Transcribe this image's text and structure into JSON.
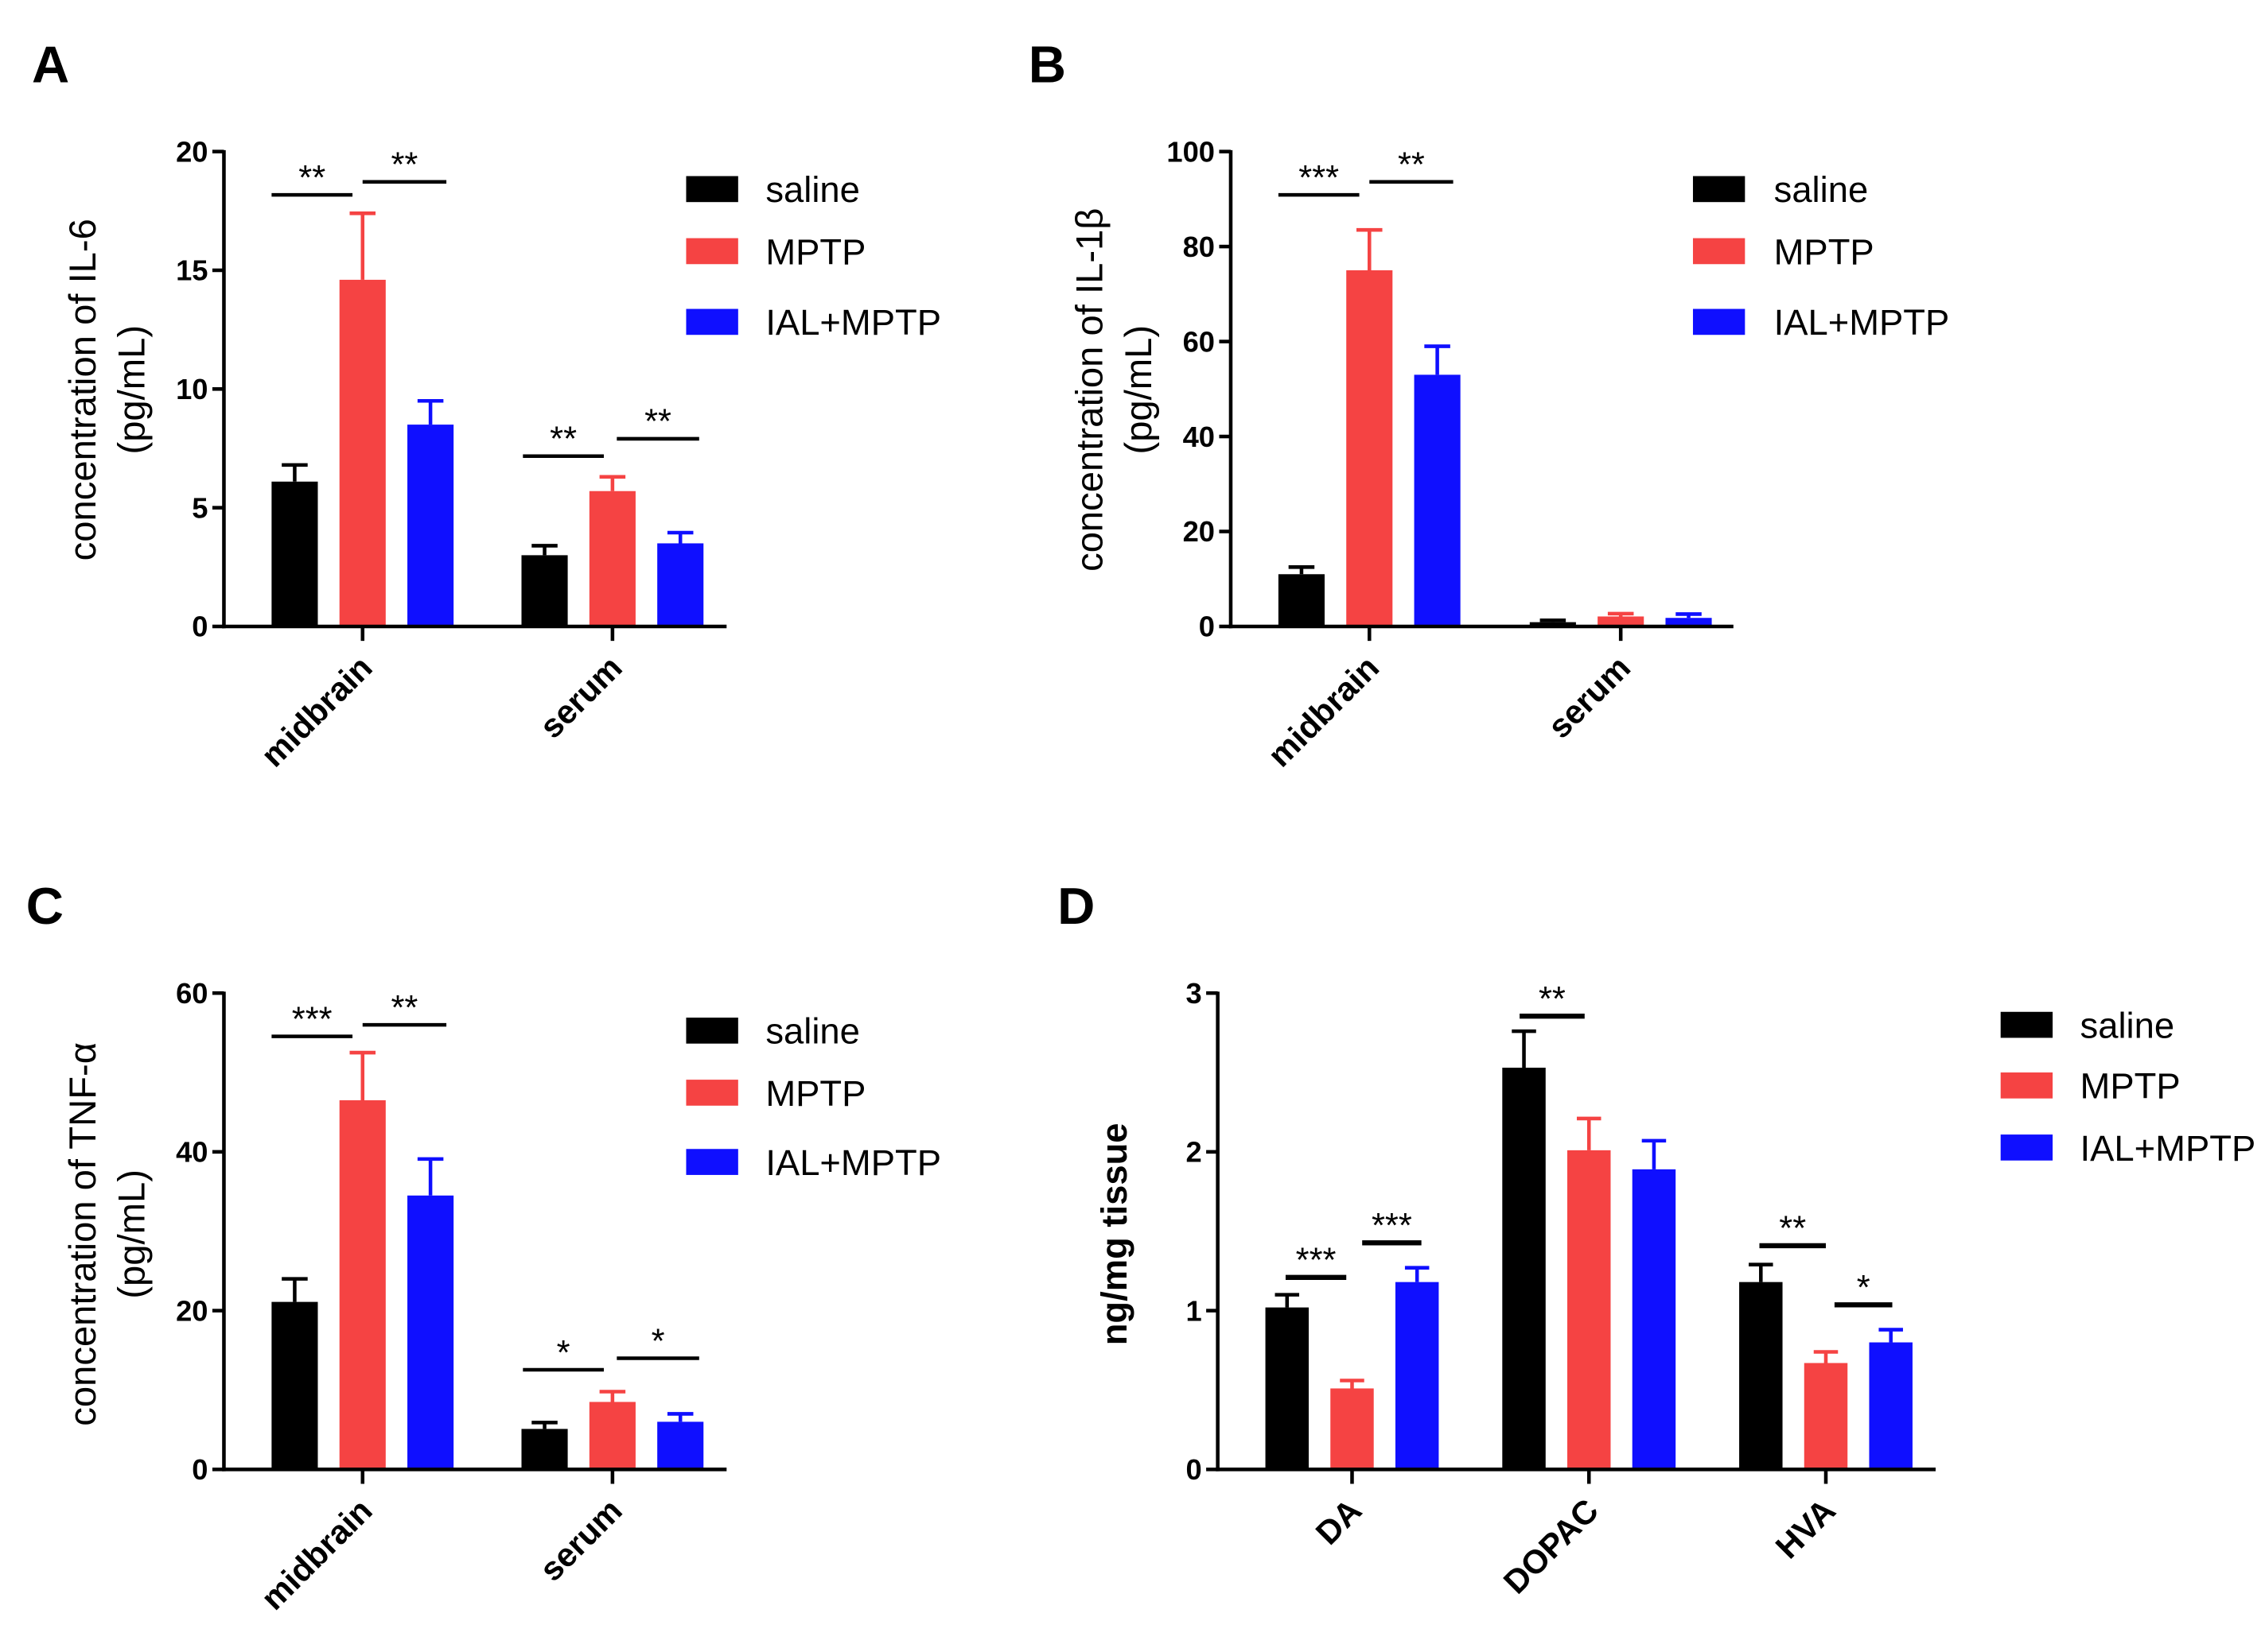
{
  "chart_data": [
    {
      "panel_label": "A",
      "type": "bar",
      "ylabel": [
        "concentration of IL-6",
        "(pg/mL)"
      ],
      "categories": [
        "midbrain",
        "serum"
      ],
      "ylim": [
        0,
        20
      ],
      "yticks": [
        0,
        5,
        10,
        15,
        20
      ],
      "grid": false,
      "legend_position": "right",
      "series": [
        {
          "name": "saline",
          "color": "#000000",
          "values": [
            6.1,
            3.0
          ],
          "errors": [
            0.7,
            0.4
          ]
        },
        {
          "name": "MPTP",
          "color": "#f54343",
          "values": [
            14.6,
            5.7
          ],
          "errors": [
            2.8,
            0.6
          ]
        },
        {
          "name": "IAL+MPTP",
          "color": "#0f0fff",
          "values": [
            8.5,
            3.5
          ],
          "errors": [
            1.0,
            0.45
          ]
        }
      ],
      "significance": [
        {
          "category_index": 0,
          "series_pair": [
            0,
            1
          ],
          "label": "**"
        },
        {
          "category_index": 0,
          "series_pair": [
            1,
            2
          ],
          "label": "**"
        },
        {
          "category_index": 1,
          "series_pair": [
            0,
            1
          ],
          "label": "**"
        },
        {
          "category_index": 1,
          "series_pair": [
            1,
            2
          ],
          "label": "**"
        }
      ]
    },
    {
      "panel_label": "B",
      "type": "bar",
      "ylabel": [
        "concentration of IL-1β",
        "(pg/mL)"
      ],
      "categories": [
        "midbrain",
        "serum"
      ],
      "ylim": [
        0,
        100
      ],
      "yticks": [
        0,
        20,
        40,
        60,
        80,
        100
      ],
      "grid": false,
      "legend_position": "right",
      "series": [
        {
          "name": "saline",
          "color": "#000000",
          "values": [
            11,
            0.9
          ],
          "errors": [
            1.5,
            0.4
          ]
        },
        {
          "name": "MPTP",
          "color": "#f54343",
          "values": [
            75,
            2.1
          ],
          "errors": [
            8.5,
            0.6
          ]
        },
        {
          "name": "IAL+MPTP",
          "color": "#0f0fff",
          "values": [
            53,
            1.8
          ],
          "errors": [
            6.0,
            0.8
          ]
        }
      ],
      "significance": [
        {
          "category_index": 0,
          "series_pair": [
            0,
            1
          ],
          "label": "***"
        },
        {
          "category_index": 0,
          "series_pair": [
            1,
            2
          ],
          "label": "**"
        }
      ]
    },
    {
      "panel_label": "C",
      "type": "bar",
      "ylabel": [
        "concentration of TNF-α",
        "(pg/mL)"
      ],
      "categories": [
        "midbrain",
        "serum"
      ],
      "ylim": [
        0,
        60
      ],
      "yticks": [
        0,
        20,
        40,
        60
      ],
      "grid": false,
      "legend_position": "right",
      "series": [
        {
          "name": "saline",
          "color": "#000000",
          "values": [
            21.1,
            5.1
          ],
          "errors": [
            2.9,
            0.8
          ]
        },
        {
          "name": "MPTP",
          "color": "#f54343",
          "values": [
            46.5,
            8.5
          ],
          "errors": [
            6.0,
            1.3
          ]
        },
        {
          "name": "IAL+MPTP",
          "color": "#0f0fff",
          "values": [
            34.5,
            6.0
          ],
          "errors": [
            4.6,
            1.0
          ]
        }
      ],
      "significance": [
        {
          "category_index": 0,
          "series_pair": [
            0,
            1
          ],
          "label": "***"
        },
        {
          "category_index": 0,
          "series_pair": [
            1,
            2
          ],
          "label": "**"
        },
        {
          "category_index": 1,
          "series_pair": [
            0,
            1
          ],
          "label": "*"
        },
        {
          "category_index": 1,
          "series_pair": [
            1,
            2
          ],
          "label": "*"
        }
      ]
    },
    {
      "panel_label": "D",
      "type": "bar",
      "ylabel": [
        "ng/mg tissue"
      ],
      "categories": [
        "DA",
        "DOPAC",
        "HVA"
      ],
      "ylim": [
        0,
        3
      ],
      "yticks": [
        0,
        1,
        2,
        3
      ],
      "grid": false,
      "legend_position": "right",
      "series": [
        {
          "name": "saline",
          "color": "#000000",
          "values": [
            1.02,
            2.53,
            1.18
          ],
          "errors": [
            0.08,
            0.23,
            0.11
          ]
        },
        {
          "name": "MPTP",
          "color": "#f54343",
          "values": [
            0.51,
            2.01,
            0.67
          ],
          "errors": [
            0.05,
            0.2,
            0.07
          ]
        },
        {
          "name": "IAL+MPTP",
          "color": "#0f0fff",
          "values": [
            1.18,
            1.89,
            0.8
          ],
          "errors": [
            0.09,
            0.18,
            0.08
          ]
        }
      ],
      "significance": [
        {
          "category_index": 0,
          "series_pair": [
            0,
            1
          ],
          "label": "***"
        },
        {
          "category_index": 0,
          "series_pair": [
            1,
            2
          ],
          "label": "***"
        },
        {
          "category_index": 1,
          "series_pair": [
            0,
            1
          ],
          "label": "**"
        },
        {
          "category_index": 2,
          "series_pair": [
            0,
            1
          ],
          "label": "**"
        },
        {
          "category_index": 2,
          "series_pair": [
            1,
            2
          ],
          "label": "*"
        }
      ]
    }
  ]
}
